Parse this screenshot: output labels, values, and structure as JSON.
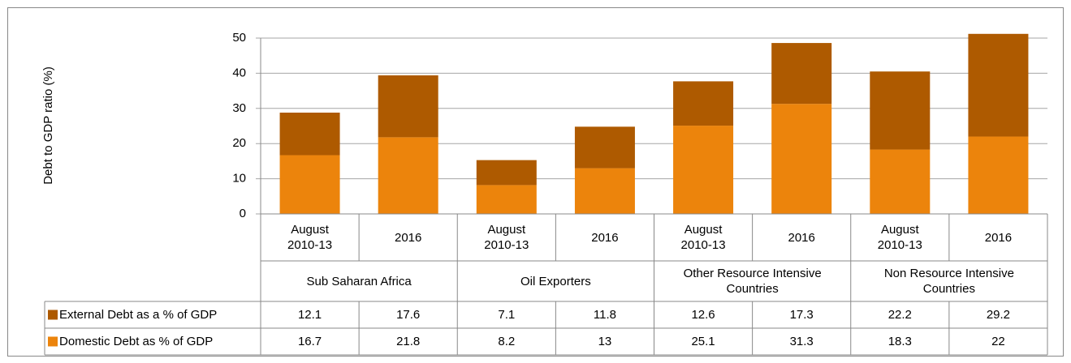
{
  "chart_data": {
    "type": "bar",
    "stacked": true,
    "y_label": "Debt to GDP ratio (%)",
    "categories": [
      "August 2010-13",
      "2016",
      "August 2010-13",
      "2016",
      "August 2010-13",
      "2016",
      "August 2010-13",
      "2016"
    ],
    "groups": [
      "Sub Saharan Africa",
      "Oil Exporters",
      "Other Resource Intensive Countries",
      "Non Resource Intensive Countries"
    ],
    "series": [
      {
        "name": "External Debt as a % of GDP",
        "color": "#ae5a00",
        "values": [
          12.1,
          17.6,
          7.1,
          11.8,
          12.6,
          17.3,
          22.2,
          29.2
        ]
      },
      {
        "name": "Domestic Debt as % of GDP",
        "color": "#ec840c",
        "values": [
          16.7,
          21.8,
          8.2,
          13,
          25.1,
          31.3,
          18.3,
          22
        ]
      }
    ],
    "ylim": [
      0,
      50
    ],
    "yticks": [
      0,
      10,
      20,
      30,
      40,
      50
    ],
    "grid": true
  }
}
